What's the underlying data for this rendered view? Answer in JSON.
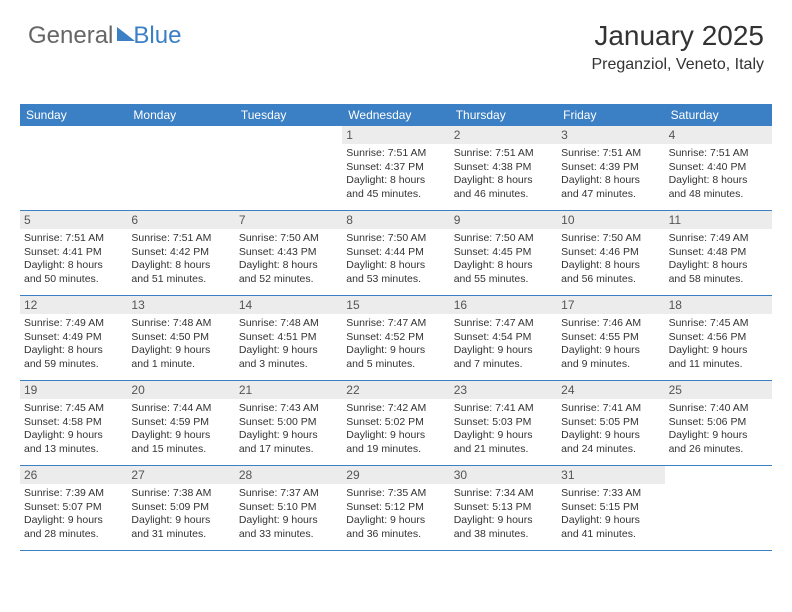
{
  "logo": {
    "part1": "General",
    "part2": "Blue"
  },
  "header": {
    "month": "January 2025",
    "location": "Preganziol, Veneto, Italy"
  },
  "colors": {
    "header_bg": "#3b7fc4",
    "header_text": "#ffffff",
    "daynum_bg": "#ececec",
    "divider": "#3b7fc4",
    "text": "#333333",
    "page_bg": "#ffffff"
  },
  "weekdays": [
    "Sunday",
    "Monday",
    "Tuesday",
    "Wednesday",
    "Thursday",
    "Friday",
    "Saturday"
  ],
  "weeks": [
    [
      null,
      null,
      null,
      {
        "d": "1",
        "sr": "Sunrise: 7:51 AM",
        "ss": "Sunset: 4:37 PM",
        "dl1": "Daylight: 8 hours",
        "dl2": "and 45 minutes."
      },
      {
        "d": "2",
        "sr": "Sunrise: 7:51 AM",
        "ss": "Sunset: 4:38 PM",
        "dl1": "Daylight: 8 hours",
        "dl2": "and 46 minutes."
      },
      {
        "d": "3",
        "sr": "Sunrise: 7:51 AM",
        "ss": "Sunset: 4:39 PM",
        "dl1": "Daylight: 8 hours",
        "dl2": "and 47 minutes."
      },
      {
        "d": "4",
        "sr": "Sunrise: 7:51 AM",
        "ss": "Sunset: 4:40 PM",
        "dl1": "Daylight: 8 hours",
        "dl2": "and 48 minutes."
      }
    ],
    [
      {
        "d": "5",
        "sr": "Sunrise: 7:51 AM",
        "ss": "Sunset: 4:41 PM",
        "dl1": "Daylight: 8 hours",
        "dl2": "and 50 minutes."
      },
      {
        "d": "6",
        "sr": "Sunrise: 7:51 AM",
        "ss": "Sunset: 4:42 PM",
        "dl1": "Daylight: 8 hours",
        "dl2": "and 51 minutes."
      },
      {
        "d": "7",
        "sr": "Sunrise: 7:50 AM",
        "ss": "Sunset: 4:43 PM",
        "dl1": "Daylight: 8 hours",
        "dl2": "and 52 minutes."
      },
      {
        "d": "8",
        "sr": "Sunrise: 7:50 AM",
        "ss": "Sunset: 4:44 PM",
        "dl1": "Daylight: 8 hours",
        "dl2": "and 53 minutes."
      },
      {
        "d": "9",
        "sr": "Sunrise: 7:50 AM",
        "ss": "Sunset: 4:45 PM",
        "dl1": "Daylight: 8 hours",
        "dl2": "and 55 minutes."
      },
      {
        "d": "10",
        "sr": "Sunrise: 7:50 AM",
        "ss": "Sunset: 4:46 PM",
        "dl1": "Daylight: 8 hours",
        "dl2": "and 56 minutes."
      },
      {
        "d": "11",
        "sr": "Sunrise: 7:49 AM",
        "ss": "Sunset: 4:48 PM",
        "dl1": "Daylight: 8 hours",
        "dl2": "and 58 minutes."
      }
    ],
    [
      {
        "d": "12",
        "sr": "Sunrise: 7:49 AM",
        "ss": "Sunset: 4:49 PM",
        "dl1": "Daylight: 8 hours",
        "dl2": "and 59 minutes."
      },
      {
        "d": "13",
        "sr": "Sunrise: 7:48 AM",
        "ss": "Sunset: 4:50 PM",
        "dl1": "Daylight: 9 hours",
        "dl2": "and 1 minute."
      },
      {
        "d": "14",
        "sr": "Sunrise: 7:48 AM",
        "ss": "Sunset: 4:51 PM",
        "dl1": "Daylight: 9 hours",
        "dl2": "and 3 minutes."
      },
      {
        "d": "15",
        "sr": "Sunrise: 7:47 AM",
        "ss": "Sunset: 4:52 PM",
        "dl1": "Daylight: 9 hours",
        "dl2": "and 5 minutes."
      },
      {
        "d": "16",
        "sr": "Sunrise: 7:47 AM",
        "ss": "Sunset: 4:54 PM",
        "dl1": "Daylight: 9 hours",
        "dl2": "and 7 minutes."
      },
      {
        "d": "17",
        "sr": "Sunrise: 7:46 AM",
        "ss": "Sunset: 4:55 PM",
        "dl1": "Daylight: 9 hours",
        "dl2": "and 9 minutes."
      },
      {
        "d": "18",
        "sr": "Sunrise: 7:45 AM",
        "ss": "Sunset: 4:56 PM",
        "dl1": "Daylight: 9 hours",
        "dl2": "and 11 minutes."
      }
    ],
    [
      {
        "d": "19",
        "sr": "Sunrise: 7:45 AM",
        "ss": "Sunset: 4:58 PM",
        "dl1": "Daylight: 9 hours",
        "dl2": "and 13 minutes."
      },
      {
        "d": "20",
        "sr": "Sunrise: 7:44 AM",
        "ss": "Sunset: 4:59 PM",
        "dl1": "Daylight: 9 hours",
        "dl2": "and 15 minutes."
      },
      {
        "d": "21",
        "sr": "Sunrise: 7:43 AM",
        "ss": "Sunset: 5:00 PM",
        "dl1": "Daylight: 9 hours",
        "dl2": "and 17 minutes."
      },
      {
        "d": "22",
        "sr": "Sunrise: 7:42 AM",
        "ss": "Sunset: 5:02 PM",
        "dl1": "Daylight: 9 hours",
        "dl2": "and 19 minutes."
      },
      {
        "d": "23",
        "sr": "Sunrise: 7:41 AM",
        "ss": "Sunset: 5:03 PM",
        "dl1": "Daylight: 9 hours",
        "dl2": "and 21 minutes."
      },
      {
        "d": "24",
        "sr": "Sunrise: 7:41 AM",
        "ss": "Sunset: 5:05 PM",
        "dl1": "Daylight: 9 hours",
        "dl2": "and 24 minutes."
      },
      {
        "d": "25",
        "sr": "Sunrise: 7:40 AM",
        "ss": "Sunset: 5:06 PM",
        "dl1": "Daylight: 9 hours",
        "dl2": "and 26 minutes."
      }
    ],
    [
      {
        "d": "26",
        "sr": "Sunrise: 7:39 AM",
        "ss": "Sunset: 5:07 PM",
        "dl1": "Daylight: 9 hours",
        "dl2": "and 28 minutes."
      },
      {
        "d": "27",
        "sr": "Sunrise: 7:38 AM",
        "ss": "Sunset: 5:09 PM",
        "dl1": "Daylight: 9 hours",
        "dl2": "and 31 minutes."
      },
      {
        "d": "28",
        "sr": "Sunrise: 7:37 AM",
        "ss": "Sunset: 5:10 PM",
        "dl1": "Daylight: 9 hours",
        "dl2": "and 33 minutes."
      },
      {
        "d": "29",
        "sr": "Sunrise: 7:35 AM",
        "ss": "Sunset: 5:12 PM",
        "dl1": "Daylight: 9 hours",
        "dl2": "and 36 minutes."
      },
      {
        "d": "30",
        "sr": "Sunrise: 7:34 AM",
        "ss": "Sunset: 5:13 PM",
        "dl1": "Daylight: 9 hours",
        "dl2": "and 38 minutes."
      },
      {
        "d": "31",
        "sr": "Sunrise: 7:33 AM",
        "ss": "Sunset: 5:15 PM",
        "dl1": "Daylight: 9 hours",
        "dl2": "and 41 minutes."
      },
      null
    ]
  ]
}
